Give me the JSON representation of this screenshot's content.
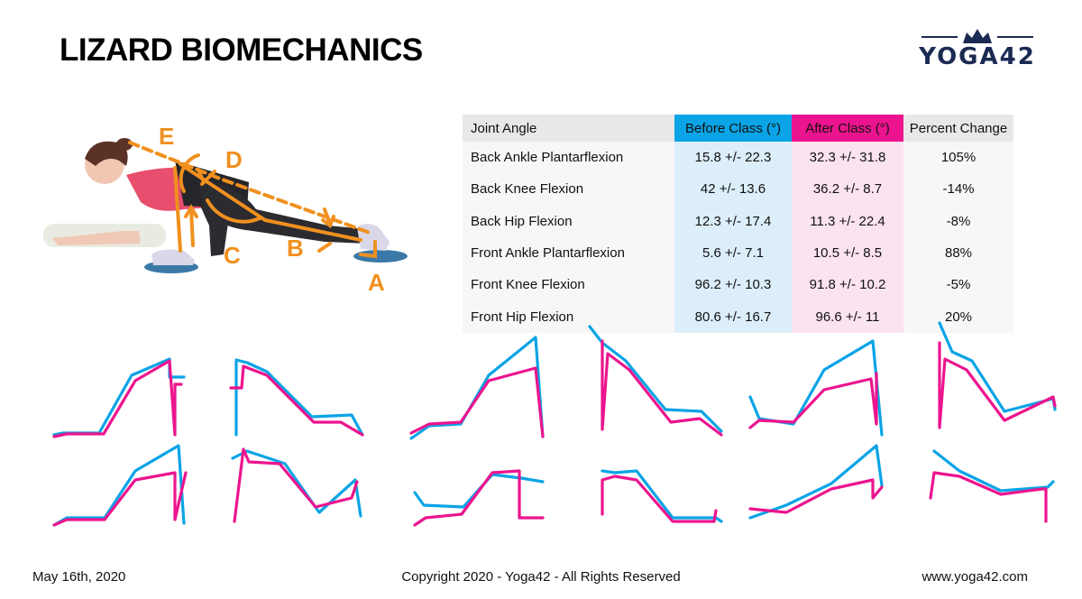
{
  "title": "LIZARD BIOMECHANICS",
  "logo": {
    "text": "YOGA42",
    "color": "#1b2a52"
  },
  "illustration": {
    "labels": [
      "A",
      "B",
      "C",
      "D",
      "E"
    ],
    "accent": "#f0901e"
  },
  "colors": {
    "before": "#0aa4e6",
    "after": "#ec148e"
  },
  "table": {
    "headers": [
      "Joint Angle",
      "Before Class (°)",
      "After Class (°)",
      "Percent Change"
    ],
    "rows": [
      {
        "joint": "Back Ankle Plantarflexion",
        "before": "15.8 +/- 22.3",
        "after": "32.3 +/- 31.8",
        "change": "105%"
      },
      {
        "joint": "Back Knee Flexion",
        "before": "42 +/- 13.6",
        "after": "36.2 +/- 8.7",
        "change": "-14%"
      },
      {
        "joint": "Back Hip Flexion",
        "before": "12.3 +/- 17.4",
        "after": "11.3 +/- 22.4",
        "change": "-8%"
      },
      {
        "joint": "Front Ankle Plantarflexion",
        "before": "5.6 +/- 7.1",
        "after": "10.5 +/- 8.5",
        "change": "88%"
      },
      {
        "joint": "Front Knee Flexion",
        "before": "96.2 +/- 10.3",
        "after": "91.8 +/- 10.2",
        "change": "-5%"
      },
      {
        "joint": "Front Hip Flexion",
        "before": "80.6 +/- 16.7",
        "after": "96.6 +/- 11",
        "change": "20%"
      }
    ]
  },
  "chart_data": {
    "type": "line",
    "description_series": [
      "before",
      "after"
    ],
    "panels": [
      {
        "before": [
          [
            0,
            8
          ],
          [
            10,
            10
          ],
          [
            50,
            10
          ],
          [
            86,
            74
          ],
          [
            128,
            92
          ],
          [
            128,
            72
          ],
          [
            144,
            72
          ]
        ],
        "after": [
          [
            0,
            6
          ],
          [
            14,
            9
          ],
          [
            55,
            9
          ],
          [
            90,
            68
          ],
          [
            128,
            90
          ],
          [
            134,
            8
          ],
          [
            134,
            64
          ],
          [
            141,
            64
          ]
        ]
      },
      {
        "before": [
          [
            6,
            8
          ],
          [
            6,
            91
          ],
          [
            18,
            88
          ],
          [
            40,
            78
          ],
          [
            90,
            28
          ],
          [
            134,
            30
          ],
          [
            146,
            8
          ]
        ],
        "after": [
          [
            0,
            60
          ],
          [
            12,
            60
          ],
          [
            14,
            84
          ],
          [
            40,
            74
          ],
          [
            92,
            22
          ],
          [
            122,
            22
          ],
          [
            146,
            8
          ]
        ]
      },
      {
        "before": [
          [
            0,
            4
          ],
          [
            20,
            18
          ],
          [
            55,
            20
          ],
          [
            86,
            74
          ],
          [
            138,
            116
          ],
          [
            146,
            6
          ]
        ],
        "after": [
          [
            0,
            10
          ],
          [
            20,
            20
          ],
          [
            55,
            22
          ],
          [
            86,
            68
          ],
          [
            138,
            82
          ],
          [
            146,
            6
          ]
        ]
      },
      {
        "before": [
          [
            0,
            128
          ],
          [
            14,
            110
          ],
          [
            40,
            90
          ],
          [
            84,
            36
          ],
          [
            124,
            34
          ],
          [
            146,
            12
          ]
        ],
        "after": [
          [
            14,
            112
          ],
          [
            14,
            14
          ],
          [
            20,
            98
          ],
          [
            44,
            80
          ],
          [
            90,
            22
          ],
          [
            122,
            26
          ],
          [
            146,
            8
          ]
        ]
      },
      {
        "before": [
          [
            0,
            50
          ],
          [
            10,
            26
          ],
          [
            48,
            20
          ],
          [
            82,
            80
          ],
          [
            136,
            112
          ],
          [
            146,
            8
          ]
        ],
        "after": [
          [
            0,
            16
          ],
          [
            10,
            24
          ],
          [
            48,
            22
          ],
          [
            82,
            58
          ],
          [
            134,
            70
          ],
          [
            140,
            20
          ],
          [
            140,
            76
          ]
        ]
      },
      {
        "before": [
          [
            20,
            132
          ],
          [
            34,
            100
          ],
          [
            56,
            90
          ],
          [
            92,
            34
          ],
          [
            146,
            48
          ],
          [
            148,
            36
          ]
        ],
        "after": [
          [
            20,
            110
          ],
          [
            20,
            16
          ],
          [
            26,
            92
          ],
          [
            50,
            80
          ],
          [
            92,
            24
          ],
          [
            146,
            50
          ],
          [
            148,
            40
          ]
        ]
      },
      {
        "before": [
          [
            0,
            10
          ],
          [
            14,
            18
          ],
          [
            56,
            18
          ],
          [
            90,
            70
          ],
          [
            138,
            98
          ],
          [
            144,
            12
          ]
        ],
        "after": [
          [
            0,
            10
          ],
          [
            14,
            16
          ],
          [
            56,
            16
          ],
          [
            90,
            60
          ],
          [
            134,
            68
          ],
          [
            134,
            16
          ],
          [
            146,
            68
          ]
        ]
      },
      {
        "before": [
          [
            2,
            84
          ],
          [
            18,
            92
          ],
          [
            60,
            78
          ],
          [
            98,
            24
          ],
          [
            138,
            60
          ],
          [
            144,
            20
          ]
        ],
        "after": [
          [
            4,
            14
          ],
          [
            14,
            94
          ],
          [
            20,
            80
          ],
          [
            54,
            78
          ],
          [
            94,
            30
          ],
          [
            134,
            40
          ],
          [
            140,
            58
          ]
        ]
      },
      {
        "before": [
          [
            4,
            46
          ],
          [
            14,
            32
          ],
          [
            58,
            30
          ],
          [
            90,
            66
          ],
          [
            122,
            62
          ],
          [
            146,
            58
          ]
        ],
        "after": [
          [
            4,
            10
          ],
          [
            16,
            18
          ],
          [
            56,
            22
          ],
          [
            90,
            68
          ],
          [
            120,
            70
          ],
          [
            120,
            18
          ],
          [
            146,
            18
          ]
        ]
      },
      {
        "before": [
          [
            14,
            70
          ],
          [
            28,
            68
          ],
          [
            52,
            70
          ],
          [
            92,
            18
          ],
          [
            140,
            18
          ],
          [
            146,
            14
          ]
        ],
        "after": [
          [
            14,
            22
          ],
          [
            14,
            60
          ],
          [
            28,
            64
          ],
          [
            52,
            60
          ],
          [
            92,
            14
          ],
          [
            138,
            14
          ],
          [
            140,
            26
          ]
        ]
      },
      {
        "before": [
          [
            0,
            18
          ],
          [
            40,
            32
          ],
          [
            90,
            56
          ],
          [
            140,
            98
          ],
          [
            146,
            54
          ]
        ],
        "after": [
          [
            0,
            28
          ],
          [
            40,
            24
          ],
          [
            90,
            50
          ],
          [
            136,
            60
          ],
          [
            136,
            40
          ],
          [
            146,
            52
          ]
        ]
      },
      {
        "before": [
          [
            14,
            92
          ],
          [
            42,
            70
          ],
          [
            88,
            48
          ],
          [
            140,
            52
          ],
          [
            146,
            58
          ]
        ],
        "after": [
          [
            10,
            40
          ],
          [
            14,
            68
          ],
          [
            42,
            64
          ],
          [
            88,
            44
          ],
          [
            134,
            50
          ],
          [
            138,
            50
          ],
          [
            138,
            14
          ]
        ]
      }
    ]
  },
  "footer": {
    "date": "May 16th, 2020",
    "copyright": "Copyright 2020 - Yoga42 - All Rights Reserved",
    "website": "www.yoga42.com"
  }
}
